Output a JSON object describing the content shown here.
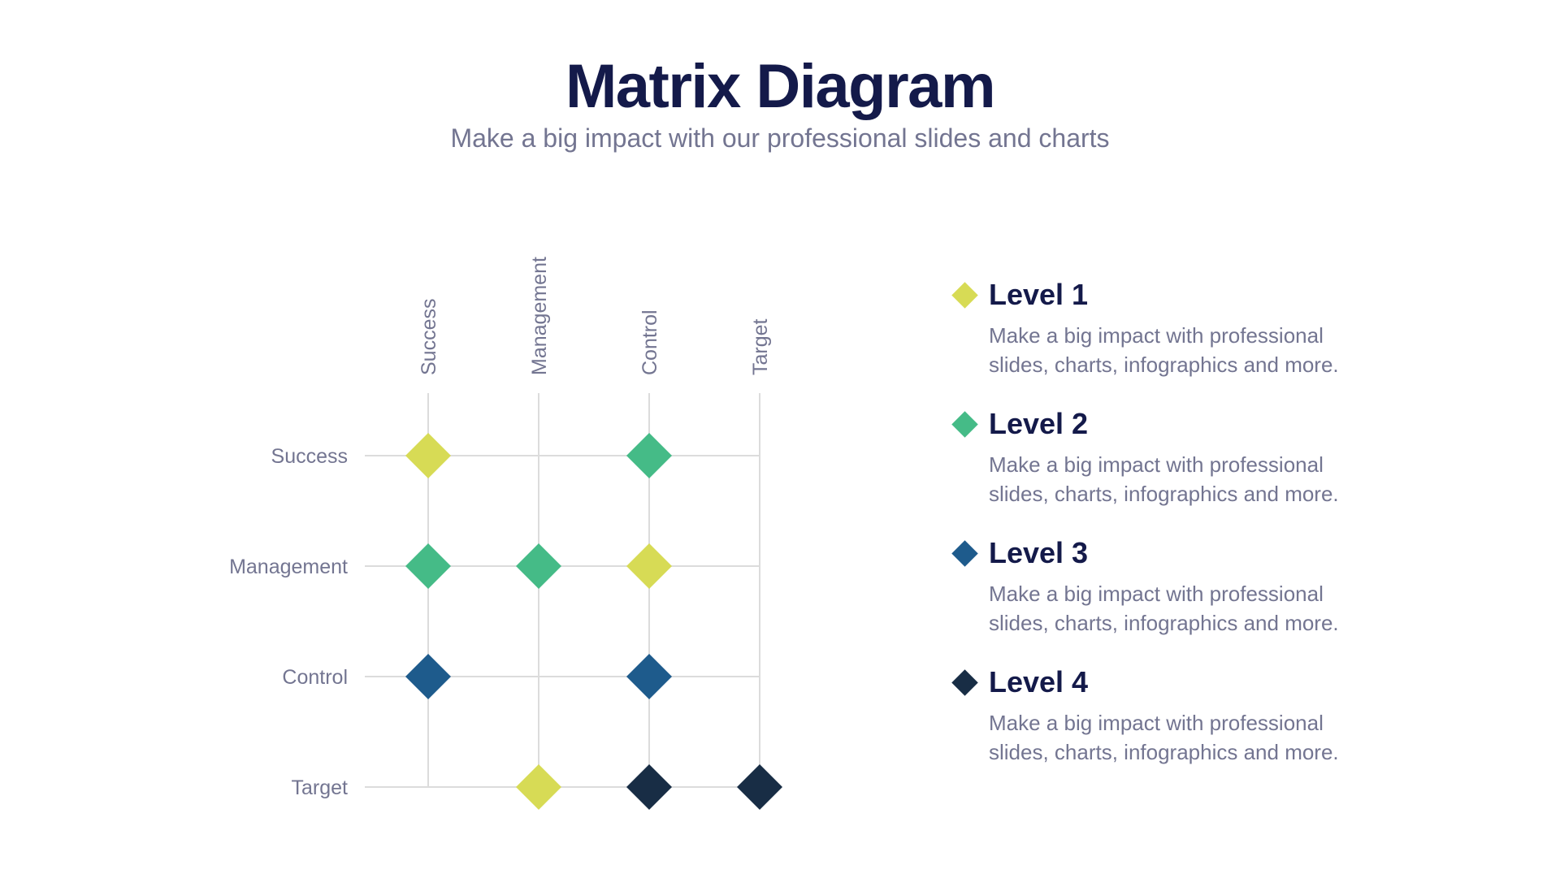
{
  "header": {
    "title": "Matrix Diagram",
    "subtitle": "Make a big impact with our professional slides and charts"
  },
  "matrix": {
    "columns": [
      "Success",
      "Management",
      "Control",
      "Target"
    ],
    "rows": [
      "Success",
      "Management",
      "Control",
      "Target"
    ],
    "cells": [
      {
        "row": 0,
        "col": 0,
        "level": 1
      },
      {
        "row": 0,
        "col": 2,
        "level": 2
      },
      {
        "row": 1,
        "col": 0,
        "level": 2
      },
      {
        "row": 1,
        "col": 1,
        "level": 2
      },
      {
        "row": 1,
        "col": 2,
        "level": 1
      },
      {
        "row": 2,
        "col": 0,
        "level": 3
      },
      {
        "row": 2,
        "col": 2,
        "level": 3
      },
      {
        "row": 3,
        "col": 1,
        "level": 1
      },
      {
        "row": 3,
        "col": 2,
        "level": 4
      },
      {
        "row": 3,
        "col": 3,
        "level": 4
      }
    ]
  },
  "legend": {
    "items": [
      {
        "level": 1,
        "title": "Level 1",
        "description": "Make a big impact with professional slides, charts, infographics and more.",
        "color": "#d7db55"
      },
      {
        "level": 2,
        "title": "Level 2",
        "description": "Make a big impact with professional slides, charts, infographics and more.",
        "color": "#45bb87"
      },
      {
        "level": 3,
        "title": "Level 3",
        "description": "Make a big impact with professional slides, charts, infographics and more.",
        "color": "#1e5b8c"
      },
      {
        "level": 4,
        "title": "Level 4",
        "description": "Make a big impact with professional slides, charts, infographics and more.",
        "color": "#182d45"
      }
    ]
  },
  "colors": {
    "grid": "#dcdcdc",
    "label": "#737591",
    "title": "#141a4a"
  }
}
